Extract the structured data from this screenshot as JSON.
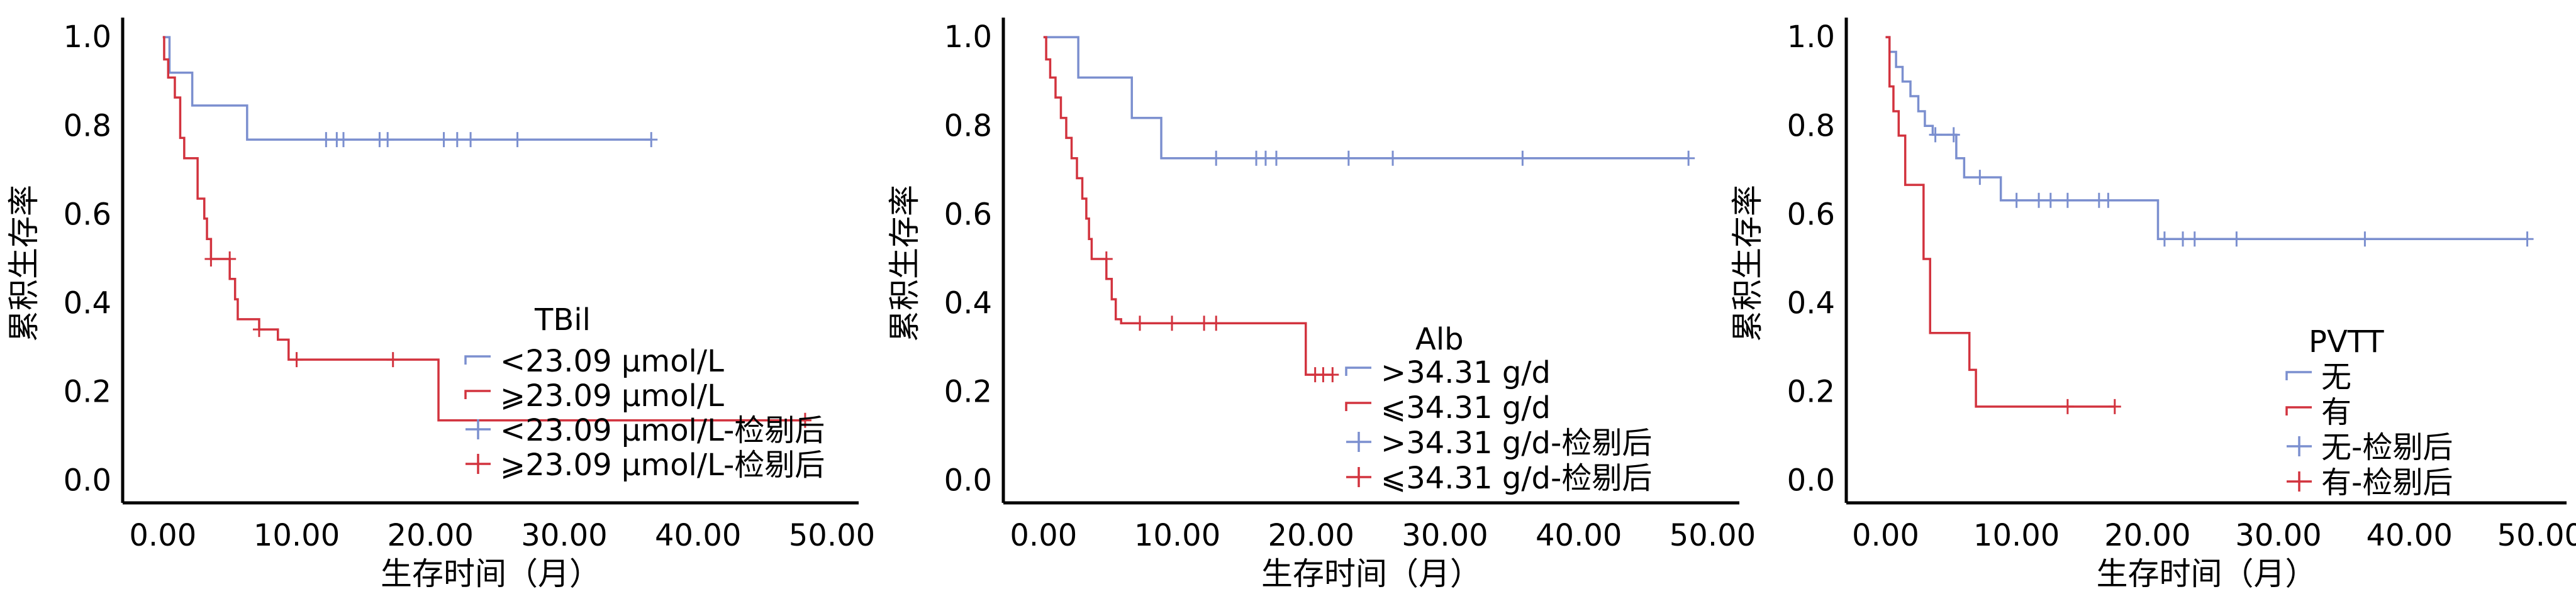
{
  "colors": {
    "blue": "#7b8fcf",
    "red": "#d2333e",
    "axis": "#000000"
  },
  "chart_data": [
    {
      "type": "line",
      "subtype": "kaplan-meier",
      "ylabel": "累积生存率",
      "xlabel": "生存时间（月）",
      "xlim": [
        -3,
        52
      ],
      "ylim": [
        -0.05,
        1.03
      ],
      "xticks": [
        "0.00",
        "10.00",
        "20.00",
        "30.00",
        "40.00",
        "50.00"
      ],
      "yticks": [
        "0.0",
        "0.2",
        "0.4",
        "0.6",
        "0.8",
        "1.0"
      ],
      "legend_title": "TBil",
      "legend": [
        "<23.09 μmol/L",
        "⩾23.09 μmol/L",
        "<23.09 μmol/L-检剔后",
        "⩾23.09 μmol/L-检剔后"
      ],
      "series": [
        {
          "name": "<23.09 μmol/L",
          "color": "blue",
          "steps": [
            [
              0,
              1.0
            ],
            [
              0.5,
              0.92
            ],
            [
              2.2,
              0.846
            ],
            [
              6.3,
              0.769
            ],
            [
              36.5,
              0.769
            ]
          ],
          "censored": [
            [
              12.2,
              0.769
            ],
            [
              13.0,
              0.769
            ],
            [
              13.5,
              0.769
            ],
            [
              16.2,
              0.769
            ],
            [
              16.8,
              0.769
            ],
            [
              21.0,
              0.769
            ],
            [
              22.0,
              0.769
            ],
            [
              23.0,
              0.769
            ],
            [
              26.5,
              0.769
            ],
            [
              36.5,
              0.769
            ]
          ]
        },
        {
          "name": "⩾23.09 μmol/L",
          "color": "red",
          "steps": [
            [
              0,
              1.0
            ],
            [
              0.1,
              0.95
            ],
            [
              0.4,
              0.909
            ],
            [
              0.9,
              0.864
            ],
            [
              1.3,
              0.773
            ],
            [
              1.6,
              0.727
            ],
            [
              2.6,
              0.636
            ],
            [
              3.1,
              0.591
            ],
            [
              3.3,
              0.545
            ],
            [
              3.6,
              0.5
            ],
            [
              5.0,
              0.455
            ],
            [
              5.4,
              0.409
            ],
            [
              5.6,
              0.364
            ],
            [
              7.2,
              0.341
            ],
            [
              8.6,
              0.318
            ],
            [
              9.4,
              0.273
            ],
            [
              20.6,
              0.136
            ],
            [
              48.0,
              0.136
            ]
          ],
          "censored": [
            [
              3.6,
              0.5
            ],
            [
              5.0,
              0.5
            ],
            [
              7.2,
              0.341
            ],
            [
              10.0,
              0.273
            ],
            [
              17.2,
              0.273
            ],
            [
              48.0,
              0.136
            ]
          ]
        }
      ]
    },
    {
      "type": "line",
      "subtype": "kaplan-meier",
      "ylabel": "累积生存率",
      "xlabel": "生存时间（月）",
      "xlim": [
        -3,
        52
      ],
      "ylim": [
        -0.05,
        1.03
      ],
      "xticks": [
        "0.00",
        "10.00",
        "20.00",
        "30.00",
        "40.00",
        "50.00"
      ],
      "yticks": [
        "0.0",
        "0.2",
        "0.4",
        "0.6",
        "0.8",
        "1.0"
      ],
      "legend_title": "Alb",
      "legend": [
        ">34.31 g/d",
        "⩽34.31 g/d",
        ">34.31 g/d-检剔后",
        "⩽34.31 g/d-检剔后"
      ],
      "series": [
        {
          "name": ">34.31 g/d",
          "color": "blue",
          "steps": [
            [
              0,
              1.0
            ],
            [
              2.6,
              0.909
            ],
            [
              6.6,
              0.818
            ],
            [
              8.8,
              0.727
            ],
            [
              48.2,
              0.727
            ]
          ],
          "censored": [
            [
              12.9,
              0.727
            ],
            [
              15.9,
              0.727
            ],
            [
              16.6,
              0.727
            ],
            [
              17.4,
              0.727
            ],
            [
              22.8,
              0.727
            ],
            [
              26.1,
              0.727
            ],
            [
              35.8,
              0.727
            ],
            [
              48.2,
              0.727
            ]
          ]
        },
        {
          "name": "⩽34.31 g/d",
          "color": "red",
          "steps": [
            [
              0,
              1.0
            ],
            [
              0.2,
              0.95
            ],
            [
              0.5,
              0.909
            ],
            [
              0.9,
              0.864
            ],
            [
              1.3,
              0.818
            ],
            [
              1.7,
              0.773
            ],
            [
              2.1,
              0.727
            ],
            [
              2.5,
              0.682
            ],
            [
              2.9,
              0.636
            ],
            [
              3.2,
              0.591
            ],
            [
              3.4,
              0.545
            ],
            [
              3.6,
              0.5
            ],
            [
              4.7,
              0.455
            ],
            [
              5.1,
              0.409
            ],
            [
              5.4,
              0.364
            ],
            [
              5.8,
              0.355
            ],
            [
              19.6,
              0.239
            ],
            [
              21.6,
              0.239
            ]
          ],
          "censored": [
            [
              4.7,
              0.5
            ],
            [
              7.2,
              0.355
            ],
            [
              9.6,
              0.355
            ],
            [
              12.0,
              0.355
            ],
            [
              12.9,
              0.355
            ],
            [
              20.3,
              0.239
            ],
            [
              20.9,
              0.239
            ],
            [
              21.6,
              0.239
            ]
          ]
        }
      ]
    },
    {
      "type": "line",
      "subtype": "kaplan-meier",
      "ylabel": "累积生存率",
      "xlabel": "生存时间（月）",
      "xlim": [
        -3,
        52
      ],
      "ylim": [
        -0.05,
        1.03
      ],
      "xticks": [
        "0.00",
        "10.00",
        "20.00",
        "30.00",
        "40.00",
        "50.00"
      ],
      "yticks": [
        "0.0",
        "0.2",
        "0.4",
        "0.6",
        "0.8",
        "1.0"
      ],
      "legend_title": "PVTT",
      "legend": [
        "无",
        "有",
        "无-检剔后",
        "有-检剔后"
      ],
      "series": [
        {
          "name": "无",
          "color": "blue",
          "steps": [
            [
              0,
              1.0
            ],
            [
              0.3,
              0.967
            ],
            [
              0.8,
              0.933
            ],
            [
              1.3,
              0.9
            ],
            [
              1.9,
              0.867
            ],
            [
              2.5,
              0.833
            ],
            [
              3.0,
              0.8
            ],
            [
              3.6,
              0.78
            ],
            [
              5.4,
              0.727
            ],
            [
              6.0,
              0.684
            ],
            [
              8.8,
              0.632
            ],
            [
              20.8,
              0.545
            ],
            [
              49.0,
              0.545
            ]
          ],
          "censored": [
            [
              3.8,
              0.78
            ],
            [
              5.2,
              0.78
            ],
            [
              7.2,
              0.684
            ],
            [
              10.0,
              0.632
            ],
            [
              11.7,
              0.632
            ],
            [
              12.6,
              0.632
            ],
            [
              13.9,
              0.632
            ],
            [
              16.3,
              0.632
            ],
            [
              17.0,
              0.632
            ],
            [
              21.3,
              0.545
            ],
            [
              22.7,
              0.545
            ],
            [
              23.6,
              0.545
            ],
            [
              26.8,
              0.545
            ],
            [
              36.6,
              0.545
            ],
            [
              49.0,
              0.545
            ]
          ]
        },
        {
          "name": "有",
          "color": "red",
          "steps": [
            [
              0,
              1.0
            ],
            [
              0.3,
              0.889
            ],
            [
              0.6,
              0.833
            ],
            [
              1.0,
              0.778
            ],
            [
              1.5,
              0.667
            ],
            [
              2.9,
              0.5
            ],
            [
              3.4,
              0.333
            ],
            [
              6.4,
              0.25
            ],
            [
              6.9,
              0.167
            ],
            [
              17.5,
              0.167
            ]
          ],
          "censored": [
            [
              13.9,
              0.167
            ],
            [
              17.5,
              0.167
            ]
          ]
        }
      ]
    }
  ]
}
